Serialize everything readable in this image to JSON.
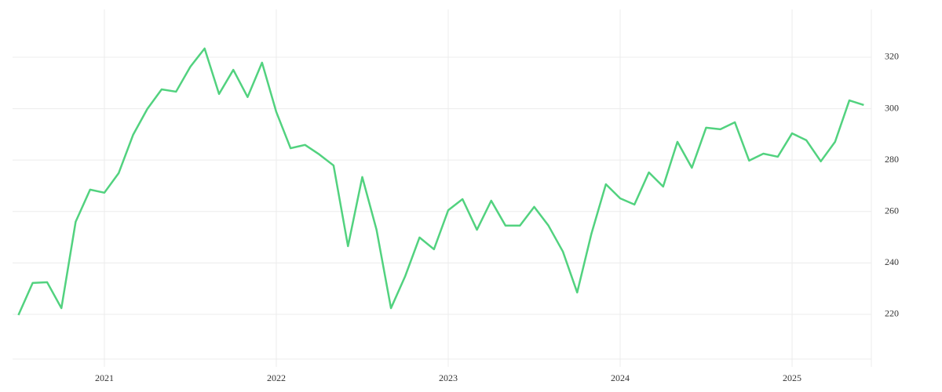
{
  "chart_data": {
    "type": "line",
    "x": [
      2020.5,
      2020.583,
      2020.667,
      2020.75,
      2020.833,
      2020.917,
      2021,
      2021.083,
      2021.167,
      2021.25,
      2021.333,
      2021.417,
      2021.5,
      2021.583,
      2021.667,
      2021.75,
      2021.833,
      2021.917,
      2022,
      2022.083,
      2022.167,
      2022.25,
      2022.333,
      2022.417,
      2022.5,
      2022.583,
      2022.667,
      2022.75,
      2022.833,
      2022.917,
      2023,
      2023.083,
      2023.167,
      2023.25,
      2023.333,
      2023.417,
      2023.5,
      2023.583,
      2023.667,
      2023.75,
      2023.833,
      2023.917,
      2024,
      2024.083,
      2024.167,
      2024.25,
      2024.333,
      2024.417,
      2024.5,
      2024.583,
      2024.667,
      2024.75,
      2024.833,
      2024.917,
      2025,
      2025.083,
      2025.167,
      2025.25,
      2025.333,
      2025.417
    ],
    "series": [
      {
        "color": "#52d27f",
        "values": [
          219.7,
          232.2,
          232.5,
          222.4,
          256,
          268.5,
          267.3,
          274.9,
          289.8,
          299.9,
          307.5,
          306.6,
          316.3,
          323.4,
          305.7,
          315.1,
          304.5,
          317.9,
          298.7,
          284.6,
          285.9,
          282.2,
          277.9,
          246.5,
          273.4,
          252.9,
          222.4,
          234.9,
          249.9,
          245.3,
          260.5,
          264.8,
          252.9,
          264.2,
          254.5,
          254.5,
          261.8,
          254.5,
          244.4,
          228.5,
          251.4,
          270.6,
          265.1,
          262.7,
          275.2,
          269.7,
          287.1,
          277,
          292.6,
          292,
          294.7,
          279.8,
          282.5,
          281.3,
          290.4,
          287.7,
          279.5,
          287.1,
          303.2,
          301.4
        ]
      }
    ],
    "xlim": [
      2020.466,
      2025.461
    ],
    "xticks": [
      2021,
      2022,
      2023,
      2024,
      2025
    ],
    "ylim": [
      202.6,
      338.6
    ],
    "yticks": [
      220,
      240,
      260,
      280,
      300,
      320
    ],
    "grid": true
  }
}
